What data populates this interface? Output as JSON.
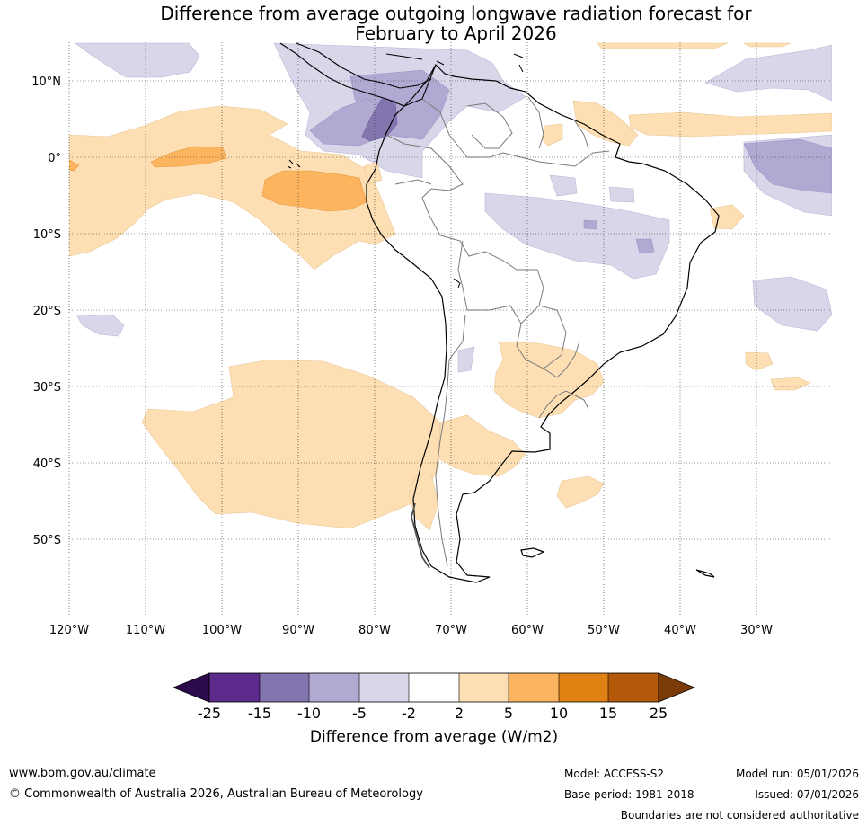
{
  "title": {
    "line1": "Difference from average outgoing longwave radiation forecast for",
    "line2": "February to April 2026"
  },
  "axes": {
    "latitude_labels": [
      "10°N",
      "0°",
      "10°S",
      "20°S",
      "30°S",
      "40°S",
      "50°S"
    ],
    "longitude_labels": [
      "120°W",
      "110°W",
      "100°W",
      "90°W",
      "80°W",
      "70°W",
      "60°W",
      "50°W",
      "40°W",
      "30°W"
    ]
  },
  "colorbar": {
    "tick_labels": [
      "-25",
      "-15",
      "-10",
      "-5",
      "-2",
      "2",
      "5",
      "10",
      "15",
      "25"
    ],
    "colors": [
      "#2d0a4e",
      "#5b2a8a",
      "#8375ae",
      "#b1a9d2",
      "#d8d7ea",
      "#ffffff",
      "#fddfb3",
      "#fcb45e",
      "#e08213",
      "#b4580a",
      "#7a3b06"
    ],
    "title": "Difference from average (W/m2)"
  },
  "footer": {
    "website": "www.bom.gov.au/climate",
    "copyright": "© Commonwealth of Australia 2026, Australian Bureau of Meteorology",
    "model": "Model: ACCESS-S2",
    "base_period": "Base period: 1981-2018",
    "model_run": "Model run: 05/01/2026",
    "issued": "Issued: 07/01/2026",
    "disclaimer": "Boundaries are not considered authoritative"
  }
}
